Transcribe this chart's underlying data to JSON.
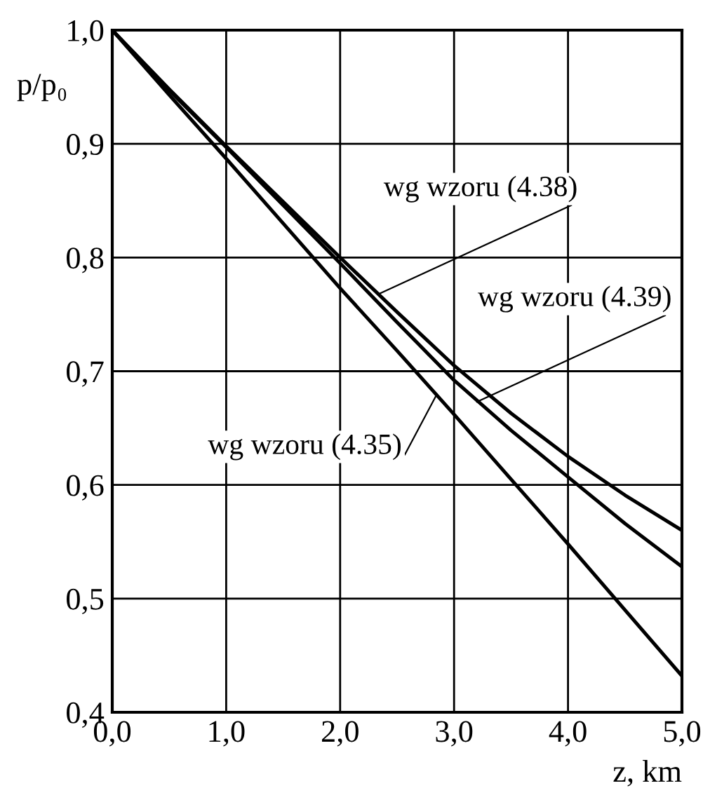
{
  "chart_data": {
    "type": "line",
    "xlabel": "z, km",
    "ylabel": "p/p₀",
    "x": [
      0,
      0.5,
      1,
      1.5,
      2,
      2.5,
      3,
      3.5,
      4,
      4.5,
      5
    ],
    "series": [
      {
        "color": "#000000",
        "values": [
          1.0,
          0.948,
          0.898,
          0.849,
          0.8,
          0.752,
          0.705,
          0.663,
          0.625,
          0.591,
          0.56
        ]
      },
      {
        "color": "#000000",
        "values": [
          1.0,
          0.947,
          0.897,
          0.846,
          0.795,
          0.743,
          0.692,
          0.648,
          0.607,
          0.566,
          0.528
        ]
      },
      {
        "color": "#000000",
        "values": [
          1.0,
          0.943,
          0.887,
          0.83,
          0.773,
          0.718,
          0.662,
          0.605,
          0.548,
          0.49,
          0.432
        ]
      }
    ],
    "annotations": [
      {
        "text": "wg wzoru (4.38)",
        "x": 2.34,
        "y": 0.768
      },
      {
        "text": "wg wzoru (4.39)",
        "x": 3.2,
        "y": 0.673
      },
      {
        "text": "wg wzoru (4.35)",
        "x": 2.85,
        "y": 0.68
      }
    ],
    "xlim": [
      0,
      5
    ],
    "ylim": [
      0.4,
      1.0
    ],
    "xticks": [
      {
        "value": 0,
        "label": "0,0"
      },
      {
        "value": 1,
        "label": "1,0"
      },
      {
        "value": 2,
        "label": "2,0"
      },
      {
        "value": 3,
        "label": "3,0"
      },
      {
        "value": 4,
        "label": "4,0"
      },
      {
        "value": 5,
        "label": "5,0"
      }
    ],
    "yticks": [
      {
        "value": 0.4,
        "label": "0,4"
      },
      {
        "value": 0.5,
        "label": "0,5"
      },
      {
        "value": 0.6,
        "label": "0,6"
      },
      {
        "value": 0.7,
        "label": "0,7"
      },
      {
        "value": 0.8,
        "label": "0,8"
      },
      {
        "value": 0.9,
        "label": "0,9"
      },
      {
        "value": 1.0,
        "label": "1,0"
      }
    ],
    "grid": true,
    "marker": "none",
    "line_style": "solid"
  }
}
